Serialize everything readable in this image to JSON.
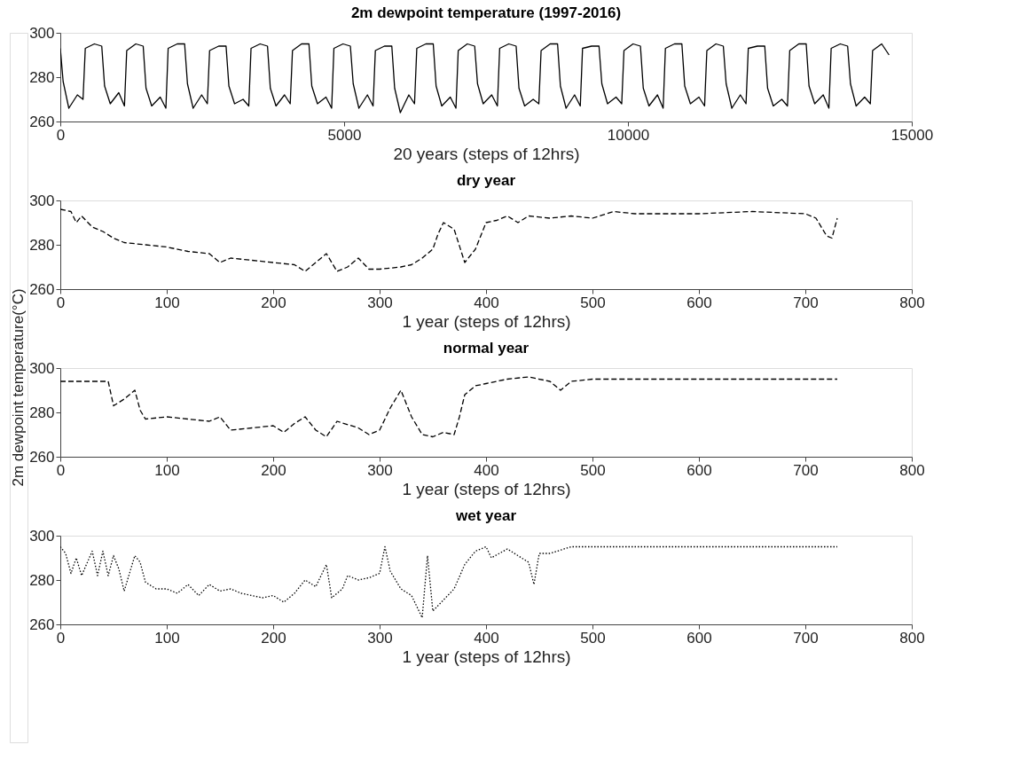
{
  "chart_data": [
    {
      "type": "line",
      "title": "2m dewpoint temperature (1997-2016)",
      "xlabel": "20 years (steps of 12hrs)",
      "xlim": [
        0,
        15000
      ],
      "xticks": [
        0,
        5000,
        10000,
        15000
      ],
      "ylim": [
        260,
        300
      ],
      "yticks": [
        260,
        280,
        300
      ],
      "grid": false,
      "line_style": "solid",
      "series": [
        {
          "color": "#000000",
          "x": [
            0,
            50,
            150,
            300,
            400,
            440,
            600,
            730,
            780,
            880,
            1030,
            1130,
            1170,
            1330,
            1460,
            1510,
            1610,
            1760,
            1860,
            1900,
            2060,
            2190,
            2240,
            2340,
            2490,
            2590,
            2630,
            2790,
            2920,
            2970,
            3070,
            3220,
            3320,
            3360,
            3520,
            3650,
            3700,
            3800,
            3950,
            4050,
            4090,
            4250,
            4380,
            4430,
            4530,
            4680,
            4780,
            4820,
            4980,
            5110,
            5160,
            5260,
            5410,
            5510,
            5550,
            5710,
            5840,
            5890,
            5990,
            6140,
            6240,
            6280,
            6440,
            6570,
            6620,
            6720,
            6870,
            6970,
            7010,
            7170,
            7300,
            7350,
            7450,
            7600,
            7700,
            7740,
            7900,
            8030,
            8080,
            8180,
            8330,
            8430,
            8470,
            8630,
            8760,
            8810,
            8910,
            9060,
            9160,
            9200,
            9360,
            9490,
            9540,
            9640,
            9790,
            9890,
            9930,
            10090,
            10220,
            10270,
            10370,
            10520,
            10620,
            10660,
            10820,
            10950,
            11000,
            11100,
            11250,
            11350,
            11390,
            11550,
            11680,
            11730,
            11830,
            11980,
            12080,
            12120,
            12280,
            12410,
            12460,
            12560,
            12710,
            12810,
            12850,
            13010,
            13140,
            13190,
            13290,
            13440,
            13540,
            13580,
            13740,
            13870,
            13920,
            14020,
            14170,
            14270,
            14310,
            14470,
            14600
          ],
          "values": [
            293,
            278,
            266,
            272,
            270,
            293,
            295,
            294,
            276,
            268,
            273,
            267,
            292,
            295,
            294,
            275,
            267,
            271,
            266,
            293,
            295,
            295,
            277,
            266,
            272,
            268,
            292,
            294,
            294,
            276,
            268,
            270,
            267,
            293,
            295,
            294,
            275,
            267,
            272,
            268,
            292,
            295,
            295,
            276,
            268,
            271,
            266,
            293,
            295,
            294,
            277,
            266,
            272,
            267,
            292,
            294,
            294,
            275,
            264,
            272,
            268,
            293,
            295,
            295,
            276,
            267,
            271,
            266,
            292,
            295,
            294,
            277,
            268,
            272,
            267,
            293,
            295,
            294,
            275,
            267,
            270,
            268,
            292,
            295,
            295,
            276,
            266,
            272,
            267,
            293,
            294,
            294,
            277,
            268,
            271,
            268,
            292,
            295,
            294,
            275,
            267,
            272,
            266,
            293,
            295,
            295,
            276,
            268,
            271,
            267,
            292,
            295,
            294,
            277,
            266,
            272,
            268,
            293,
            294,
            294,
            275,
            267,
            270,
            267,
            292,
            295,
            295,
            276,
            268,
            272,
            266,
            293,
            295,
            294,
            277,
            267,
            271,
            268,
            292,
            295,
            290
          ]
        }
      ]
    },
    {
      "type": "line",
      "title": "dry year",
      "xlabel": "1 year (steps of 12hrs)",
      "xlim": [
        0,
        800
      ],
      "xticks": [
        0,
        100,
        200,
        300,
        400,
        500,
        600,
        700,
        800
      ],
      "ylim": [
        260,
        300
      ],
      "yticks": [
        260,
        280,
        300
      ],
      "grid": false,
      "line_style": "dashed",
      "series": [
        {
          "color": "#000000",
          "x": [
            0,
            10,
            15,
            20,
            30,
            40,
            50,
            60,
            80,
            100,
            120,
            140,
            150,
            160,
            180,
            200,
            220,
            230,
            240,
            250,
            260,
            270,
            280,
            290,
            300,
            320,
            330,
            340,
            350,
            355,
            360,
            370,
            380,
            390,
            400,
            410,
            420,
            430,
            440,
            460,
            480,
            500,
            520,
            540,
            560,
            600,
            650,
            700,
            710,
            720,
            725,
            730
          ],
          "values": [
            296,
            295,
            290,
            293,
            288,
            286,
            283,
            281,
            280,
            279,
            277,
            276,
            272,
            274,
            273,
            272,
            271,
            268,
            272,
            276,
            268,
            270,
            274,
            269,
            269,
            270,
            271,
            274,
            278,
            285,
            290,
            287,
            272,
            278,
            290,
            291,
            293,
            290,
            293,
            292,
            293,
            292,
            295,
            294,
            294,
            294,
            295,
            294,
            292,
            284,
            283,
            292
          ]
        }
      ]
    },
    {
      "type": "line",
      "title": "normal year",
      "xlabel": "1 year (steps of 12hrs)",
      "ylabel": "2m dewpoint temperature(°C)",
      "xlim": [
        0,
        800
      ],
      "xticks": [
        0,
        100,
        200,
        300,
        400,
        500,
        600,
        700,
        800
      ],
      "ylim": [
        260,
        300
      ],
      "yticks": [
        260,
        280,
        300
      ],
      "grid": false,
      "line_style": "dashed",
      "series": [
        {
          "color": "#000000",
          "x": [
            0,
            20,
            45,
            50,
            60,
            70,
            75,
            80,
            100,
            120,
            140,
            150,
            160,
            180,
            200,
            210,
            220,
            230,
            240,
            250,
            260,
            280,
            290,
            300,
            310,
            320,
            330,
            340,
            350,
            360,
            370,
            375,
            380,
            390,
            400,
            420,
            440,
            460,
            470,
            480,
            500,
            550,
            600,
            650,
            700,
            730
          ],
          "values": [
            294,
            294,
            294,
            283,
            286,
            290,
            281,
            277,
            278,
            277,
            276,
            278,
            272,
            273,
            274,
            271,
            275,
            278,
            272,
            269,
            276,
            273,
            270,
            272,
            282,
            290,
            278,
            270,
            269,
            271,
            270,
            278,
            288,
            292,
            293,
            295,
            296,
            294,
            290,
            294,
            295,
            295,
            295,
            295,
            295,
            295
          ]
        }
      ]
    },
    {
      "type": "line",
      "title": "wet year",
      "xlabel": "1 year (steps of 12hrs)",
      "xlim": [
        0,
        800
      ],
      "xticks": [
        0,
        100,
        200,
        300,
        400,
        500,
        600,
        700,
        800
      ],
      "ylim": [
        260,
        300
      ],
      "yticks": [
        260,
        280,
        300
      ],
      "grid": false,
      "line_style": "dotted",
      "series": [
        {
          "color": "#000000",
          "x": [
            0,
            5,
            10,
            15,
            20,
            30,
            35,
            40,
            45,
            50,
            55,
            60,
            70,
            75,
            80,
            90,
            100,
            110,
            120,
            130,
            140,
            150,
            160,
            170,
            180,
            190,
            200,
            210,
            220,
            230,
            240,
            250,
            255,
            265,
            270,
            280,
            290,
            300,
            305,
            310,
            320,
            330,
            340,
            345,
            350,
            360,
            370,
            380,
            390,
            400,
            405,
            420,
            440,
            445,
            450,
            460,
            480,
            500,
            550,
            600,
            650,
            700,
            730
          ],
          "values": [
            295,
            292,
            283,
            290,
            282,
            293,
            282,
            293,
            282,
            291,
            285,
            275,
            291,
            288,
            279,
            276,
            276,
            274,
            278,
            273,
            278,
            275,
            276,
            274,
            273,
            272,
            273,
            270,
            274,
            280,
            277,
            287,
            272,
            276,
            282,
            280,
            281,
            283,
            295,
            284,
            276,
            273,
            263,
            291,
            266,
            271,
            276,
            287,
            293,
            295,
            290,
            294,
            288,
            278,
            292,
            292,
            295,
            295,
            295,
            295,
            295,
            295,
            295
          ]
        }
      ]
    }
  ]
}
